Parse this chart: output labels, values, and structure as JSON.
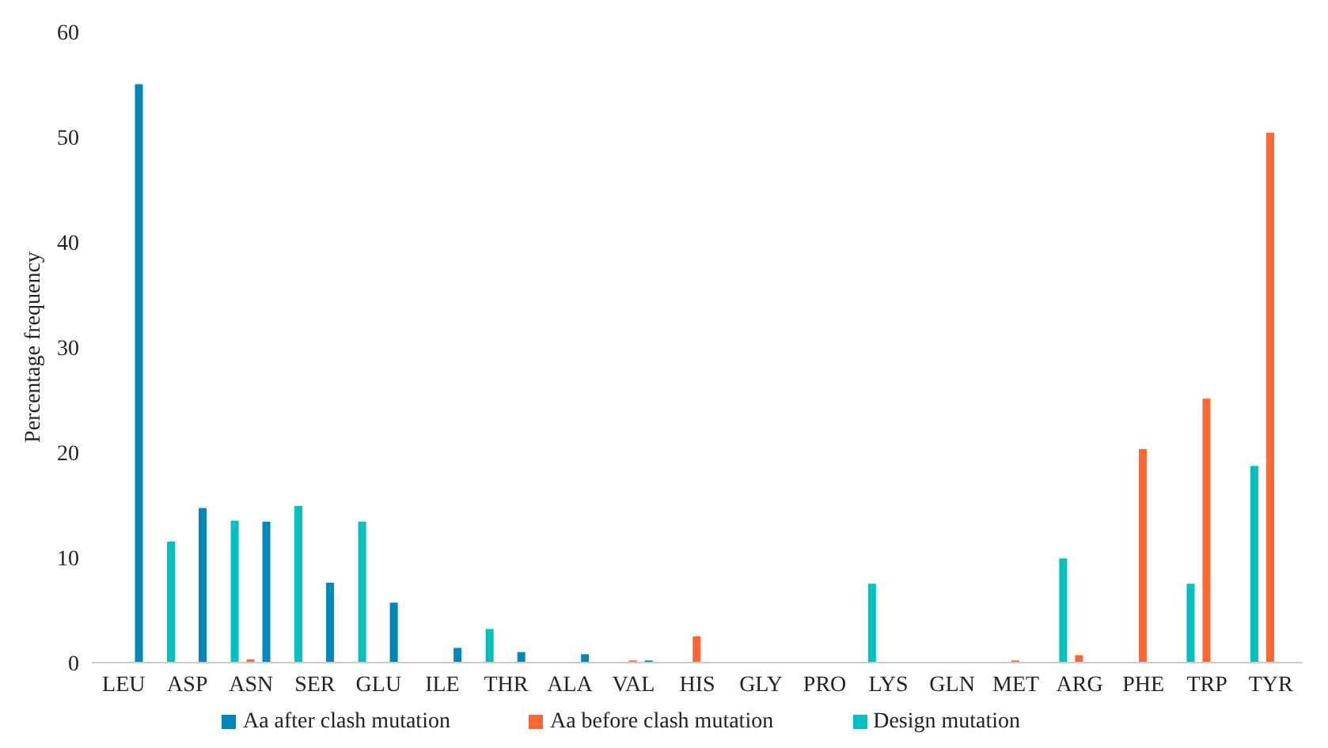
{
  "chart_data": {
    "type": "bar",
    "ylabel": "Percentage frequency",
    "categories": [
      "LEU",
      "ASP",
      "ASN",
      "SER",
      "GLU",
      "ILE",
      "THR",
      "ALA",
      "VAL",
      "HIS",
      "GLY",
      "PRO",
      "LYS",
      "GLN",
      "MET",
      "ARG",
      "PHE",
      "TRP",
      "TYR"
    ],
    "series": [
      {
        "name": "Design mutation",
        "color": "#00c0c0",
        "values": [
          0,
          11.5,
          13.5,
          14.9,
          13.4,
          0,
          3.2,
          0,
          0,
          0,
          0,
          0,
          7.5,
          0,
          0,
          9.9,
          0,
          7.5,
          18.7
        ]
      },
      {
        "name": "Aa before clash mutation",
        "color": "#ff6633",
        "values": [
          0,
          0,
          0.3,
          0,
          0,
          0,
          0,
          0,
          0.2,
          2.5,
          0,
          0,
          0,
          0,
          0.2,
          0.7,
          20.3,
          25.1,
          50.4
        ]
      },
      {
        "name": "Aa after clash mutation",
        "color": "#0088bb",
        "values": [
          55,
          14.7,
          13.4,
          7.6,
          5.7,
          1.4,
          1.0,
          0.8,
          0.2,
          0,
          0,
          0,
          0,
          0,
          0,
          0,
          0,
          0,
          0
        ]
      }
    ],
    "ylim": [
      0,
      60
    ],
    "yticks": [
      0,
      10,
      20,
      30,
      40,
      50,
      60
    ],
    "grid": false,
    "legend": "bottom"
  }
}
